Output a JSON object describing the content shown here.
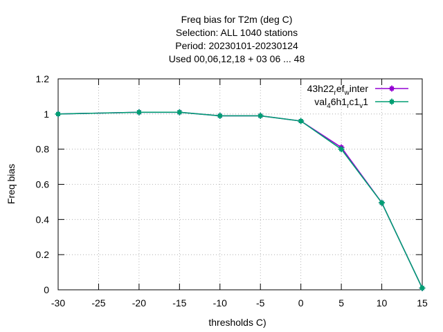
{
  "chart_data": {
    "type": "line",
    "title_lines": [
      "Freq bias  for T2m (deg C)",
      "Selection: ALL   1040 stations",
      "Period: 20230101-20230124",
      "Used  00,06,12,18  + 03 06 ... 48"
    ],
    "xlabel": "thresholds C)",
    "ylabel": "Freq bias",
    "xlim": [
      -30,
      15
    ],
    "ylim": [
      0,
      1.2
    ],
    "xticks": [
      -30,
      -25,
      -20,
      -15,
      -10,
      -5,
      0,
      5,
      10,
      15
    ],
    "yticks": [
      0,
      0.2,
      0.4,
      0.6,
      0.8,
      1,
      1.2
    ],
    "grid": true,
    "legend_position": "top-right",
    "x": [
      -30,
      -20,
      -15,
      -10,
      -5,
      0,
      5,
      10,
      15
    ],
    "series": [
      {
        "name_parts": [
          {
            "t": "43h22",
            "sub": false
          },
          {
            "t": "r",
            "sub": true
          },
          {
            "t": "ef",
            "sub": false
          },
          {
            "t": "w",
            "sub": true
          },
          {
            "t": "inter",
            "sub": false
          }
        ],
        "color": "#9400d3",
        "values": [
          1.0,
          1.01,
          1.01,
          0.99,
          0.99,
          0.96,
          0.81,
          0.495,
          0.01
        ]
      },
      {
        "name_parts": [
          {
            "t": "val",
            "sub": false
          },
          {
            "t": "4",
            "sub": true
          },
          {
            "t": "6h1",
            "sub": false
          },
          {
            "t": "r",
            "sub": true
          },
          {
            "t": "c1",
            "sub": false
          },
          {
            "t": "v",
            "sub": true
          },
          {
            "t": "1",
            "sub": false
          }
        ],
        "color": "#009e73",
        "values": [
          1.0,
          1.01,
          1.01,
          0.99,
          0.99,
          0.96,
          0.8,
          0.495,
          0.01
        ]
      }
    ]
  }
}
